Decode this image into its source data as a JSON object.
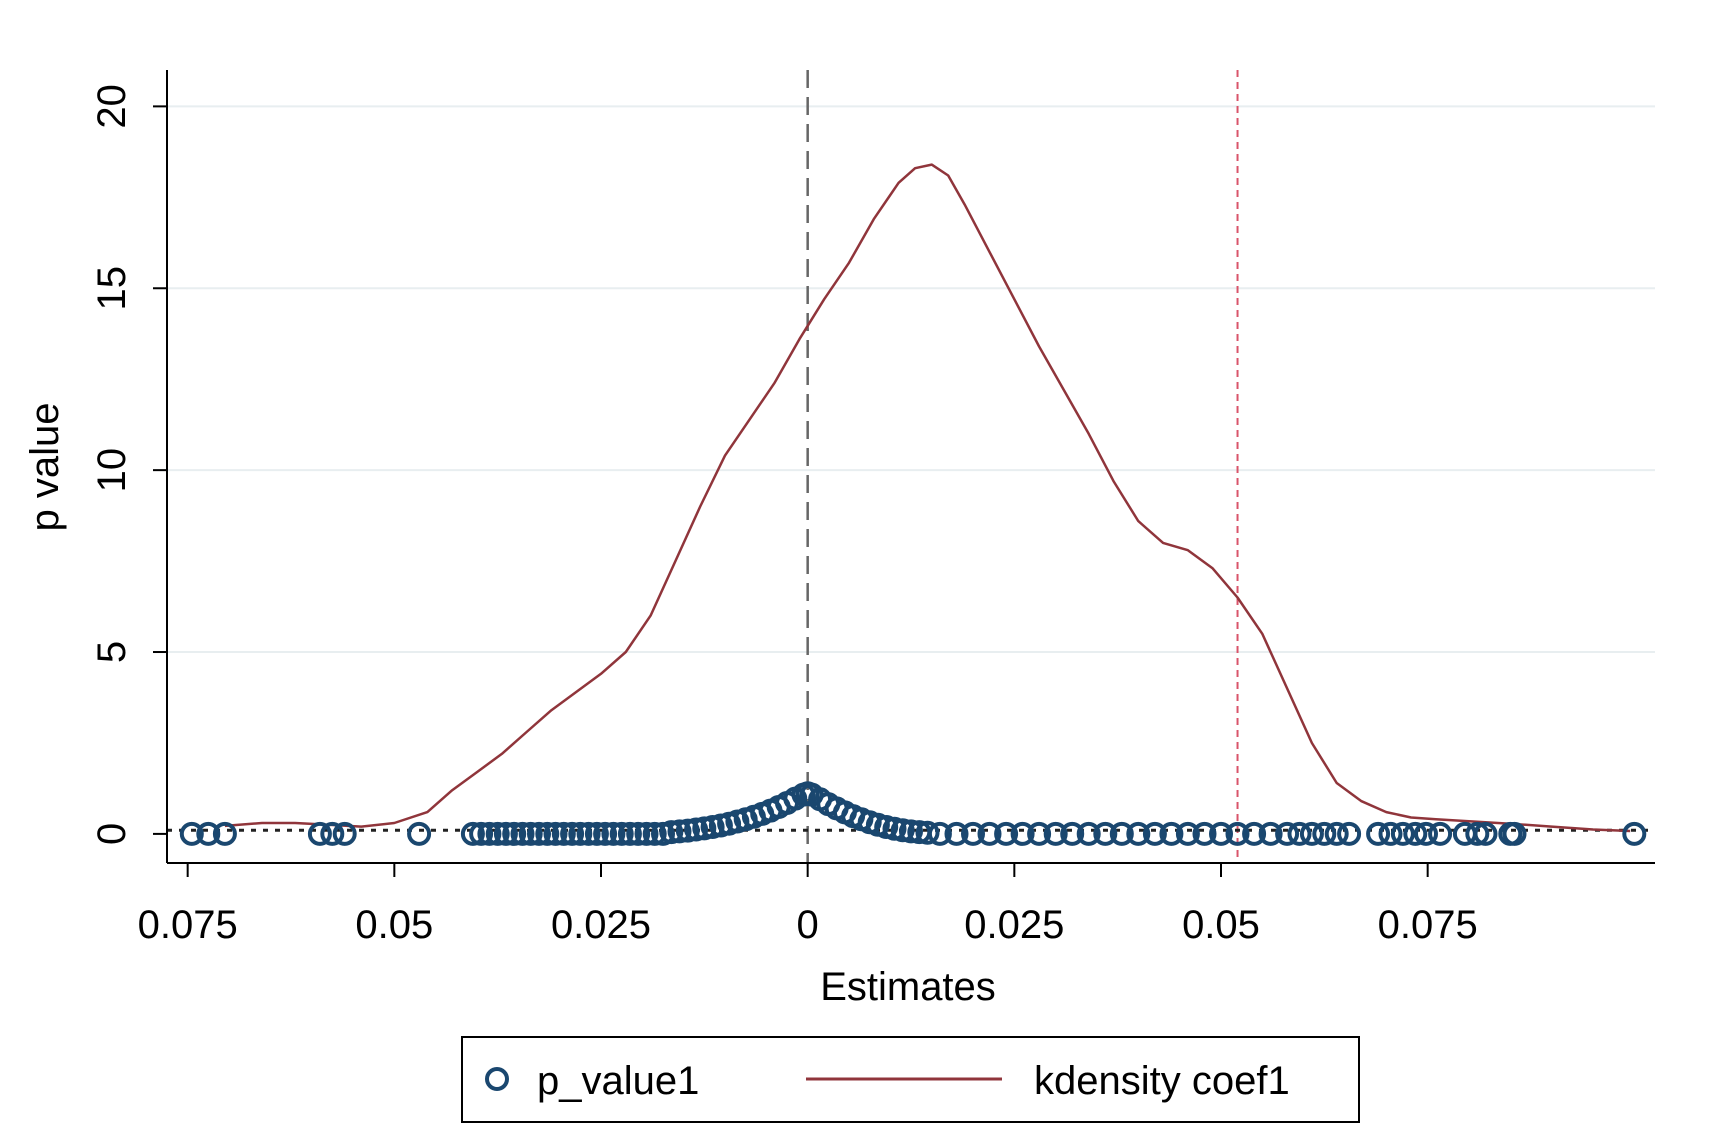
{
  "chart_data": {
    "type": "scatter",
    "xlabel": "Estimates",
    "ylabel": "p value",
    "xlim": [
      -0.0775,
      0.1025
    ],
    "ylim": [
      -0.8,
      21.0
    ],
    "x_ticks": [
      {
        "value": -0.075,
        "label": "0.075"
      },
      {
        "value": -0.05,
        "label": "0.05"
      },
      {
        "value": -0.025,
        "label": "0.025"
      },
      {
        "value": 0,
        "label": "0"
      },
      {
        "value": 0.025,
        "label": "0.025"
      },
      {
        "value": 0.05,
        "label": "0.05"
      },
      {
        "value": 0.075,
        "label": "0.075"
      }
    ],
    "y_ticks": [
      {
        "value": 0,
        "label": "0"
      },
      {
        "value": 5,
        "label": "5"
      },
      {
        "value": 10,
        "label": "10"
      },
      {
        "value": 15,
        "label": "15"
      },
      {
        "value": 20,
        "label": "20"
      }
    ],
    "grid": "horizontal",
    "reference_lines": {
      "vertical_zero": 0,
      "vertical_observed": 0.052,
      "horizontal_threshold": 0.1
    },
    "legend": {
      "position": "bottom",
      "entries": [
        {
          "label": "p_value1",
          "marker": "hollow-circle",
          "color": "#1a476f"
        },
        {
          "label": "kdensity coef1",
          "marker": "line",
          "color": "#90353b"
        }
      ]
    },
    "series": [
      {
        "name": "p_value1",
        "kind": "scatter",
        "color": "#1a476f",
        "points": [
          [
            -0.0745,
            0
          ],
          [
            -0.0725,
            0
          ],
          [
            -0.0705,
            0
          ],
          [
            -0.059,
            0
          ],
          [
            -0.0575,
            0
          ],
          [
            -0.056,
            0
          ],
          [
            -0.047,
            0
          ],
          [
            -0.0405,
            0
          ],
          [
            -0.0395,
            0
          ],
          [
            -0.0385,
            0
          ],
          [
            -0.0375,
            0
          ],
          [
            -0.0365,
            0
          ],
          [
            -0.0355,
            0
          ],
          [
            -0.0345,
            0
          ],
          [
            -0.0335,
            0
          ],
          [
            -0.0325,
            0
          ],
          [
            -0.0315,
            0
          ],
          [
            -0.0305,
            0
          ],
          [
            -0.0295,
            0
          ],
          [
            -0.0285,
            0
          ],
          [
            -0.0275,
            0
          ],
          [
            -0.0265,
            0
          ],
          [
            -0.0255,
            0
          ],
          [
            -0.0245,
            0
          ],
          [
            -0.0235,
            0
          ],
          [
            -0.0225,
            0
          ],
          [
            -0.0215,
            0
          ],
          [
            -0.0205,
            0
          ],
          [
            -0.0195,
            0
          ],
          [
            -0.0185,
            0
          ],
          [
            -0.0175,
            0
          ],
          [
            -0.0165,
            0.05
          ],
          [
            -0.0155,
            0.07
          ],
          [
            -0.0145,
            0.09
          ],
          [
            -0.0135,
            0.12
          ],
          [
            -0.0125,
            0.15
          ],
          [
            -0.0115,
            0.19
          ],
          [
            -0.0105,
            0.23
          ],
          [
            -0.0095,
            0.28
          ],
          [
            -0.0085,
            0.34
          ],
          [
            -0.0075,
            0.4
          ],
          [
            -0.0065,
            0.47
          ],
          [
            -0.0055,
            0.55
          ],
          [
            -0.0045,
            0.64
          ],
          [
            -0.0035,
            0.74
          ],
          [
            -0.0025,
            0.85
          ],
          [
            -0.0015,
            0.97
          ],
          [
            -0.0005,
            1.08
          ],
          [
            0.0,
            1.12
          ],
          [
            0.0005,
            1.08
          ],
          [
            0.0015,
            0.95
          ],
          [
            0.0025,
            0.82
          ],
          [
            0.0035,
            0.7
          ],
          [
            0.0045,
            0.59
          ],
          [
            0.0055,
            0.49
          ],
          [
            0.0065,
            0.4
          ],
          [
            0.0075,
            0.32
          ],
          [
            0.0085,
            0.25
          ],
          [
            0.0095,
            0.19
          ],
          [
            0.0105,
            0.14
          ],
          [
            0.0115,
            0.1
          ],
          [
            0.0125,
            0.07
          ],
          [
            0.0135,
            0.05
          ],
          [
            0.0145,
            0.03
          ],
          [
            0.016,
            0
          ],
          [
            0.018,
            0
          ],
          [
            0.02,
            0
          ],
          [
            0.022,
            0
          ],
          [
            0.024,
            0
          ],
          [
            0.026,
            0
          ],
          [
            0.028,
            0
          ],
          [
            0.03,
            0
          ],
          [
            0.032,
            0
          ],
          [
            0.034,
            0
          ],
          [
            0.036,
            0
          ],
          [
            0.038,
            0
          ],
          [
            0.04,
            0
          ],
          [
            0.042,
            0
          ],
          [
            0.044,
            0
          ],
          [
            0.046,
            0
          ],
          [
            0.048,
            0
          ],
          [
            0.05,
            0
          ],
          [
            0.052,
            0
          ],
          [
            0.054,
            0
          ],
          [
            0.056,
            0
          ],
          [
            0.058,
            0
          ],
          [
            0.0595,
            0
          ],
          [
            0.061,
            0
          ],
          [
            0.0625,
            0
          ],
          [
            0.064,
            0
          ],
          [
            0.0655,
            0
          ],
          [
            0.069,
            0
          ],
          [
            0.0705,
            0
          ],
          [
            0.072,
            0
          ],
          [
            0.0735,
            0
          ],
          [
            0.0748,
            0
          ],
          [
            0.0765,
            0
          ],
          [
            0.0795,
            0
          ],
          [
            0.081,
            0
          ],
          [
            0.082,
            0
          ],
          [
            0.085,
            0
          ],
          [
            0.0855,
            0
          ],
          [
            0.1,
            0
          ]
        ]
      },
      {
        "name": "kdensity coef1",
        "kind": "line",
        "color": "#90353b",
        "points": [
          [
            -0.0705,
            0.22
          ],
          [
            -0.066,
            0.3
          ],
          [
            -0.062,
            0.3
          ],
          [
            -0.058,
            0.25
          ],
          [
            -0.054,
            0.2
          ],
          [
            -0.05,
            0.3
          ],
          [
            -0.046,
            0.6
          ],
          [
            -0.043,
            1.2
          ],
          [
            -0.04,
            1.7
          ],
          [
            -0.037,
            2.2
          ],
          [
            -0.034,
            2.8
          ],
          [
            -0.031,
            3.4
          ],
          [
            -0.028,
            3.9
          ],
          [
            -0.025,
            4.4
          ],
          [
            -0.022,
            5.0
          ],
          [
            -0.019,
            6.0
          ],
          [
            -0.016,
            7.5
          ],
          [
            -0.013,
            9.0
          ],
          [
            -0.01,
            10.4
          ],
          [
            -0.007,
            11.4
          ],
          [
            -0.004,
            12.4
          ],
          [
            -0.001,
            13.6
          ],
          [
            0.002,
            14.7
          ],
          [
            0.005,
            15.7
          ],
          [
            0.008,
            16.9
          ],
          [
            0.011,
            17.9
          ],
          [
            0.013,
            18.3
          ],
          [
            0.015,
            18.4
          ],
          [
            0.017,
            18.1
          ],
          [
            0.019,
            17.3
          ],
          [
            0.022,
            16.0
          ],
          [
            0.025,
            14.7
          ],
          [
            0.028,
            13.4
          ],
          [
            0.031,
            12.2
          ],
          [
            0.034,
            11.0
          ],
          [
            0.037,
            9.7
          ],
          [
            0.04,
            8.6
          ],
          [
            0.043,
            8.0
          ],
          [
            0.046,
            7.8
          ],
          [
            0.049,
            7.3
          ],
          [
            0.052,
            6.5
          ],
          [
            0.055,
            5.5
          ],
          [
            0.058,
            4.0
          ],
          [
            0.061,
            2.5
          ],
          [
            0.064,
            1.4
          ],
          [
            0.067,
            0.9
          ],
          [
            0.07,
            0.6
          ],
          [
            0.073,
            0.45
          ],
          [
            0.076,
            0.4
          ],
          [
            0.08,
            0.35
          ],
          [
            0.085,
            0.28
          ],
          [
            0.09,
            0.2
          ],
          [
            0.095,
            0.12
          ],
          [
            0.0995,
            0.08
          ]
        ]
      }
    ]
  }
}
